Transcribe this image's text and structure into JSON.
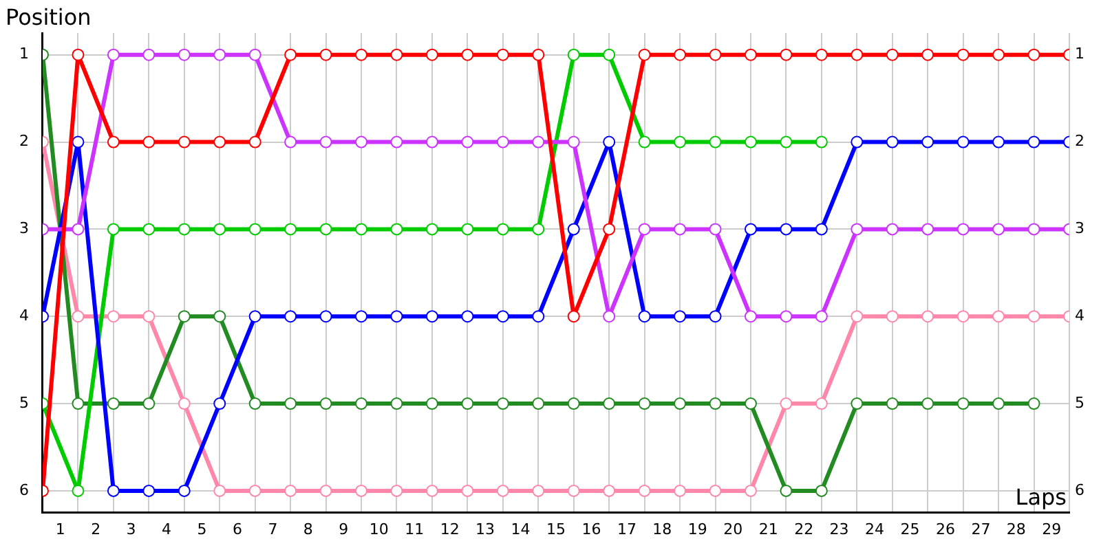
{
  "chart_data": {
    "type": "line",
    "xlabel": "Laps",
    "ylabel": "Position",
    "x": [
      0,
      1,
      2,
      3,
      4,
      5,
      6,
      7,
      8,
      9,
      10,
      11,
      12,
      13,
      14,
      15,
      16,
      17,
      18,
      19,
      20,
      21,
      22,
      23,
      24,
      25,
      26,
      27,
      28,
      29
    ],
    "xlim": [
      0,
      29
    ],
    "xticks": [
      {
        "value": 0,
        "label": null
      },
      {
        "value": 0.5,
        "label": "1"
      },
      {
        "value": 1,
        "label": null
      },
      {
        "value": 1.5,
        "label": "2"
      },
      {
        "value": 2,
        "label": null
      },
      {
        "value": 2.5,
        "label": "3"
      },
      {
        "value": 3,
        "label": null
      },
      {
        "value": 3.5,
        "label": "4"
      },
      {
        "value": 4,
        "label": null
      },
      {
        "value": 4.5,
        "label": "5"
      },
      {
        "value": 5,
        "label": null
      },
      {
        "value": 5.5,
        "label": "6"
      },
      {
        "value": 6,
        "label": null
      },
      {
        "value": 6.5,
        "label": "7"
      },
      {
        "value": 7,
        "label": null
      },
      {
        "value": 7.5,
        "label": "8"
      },
      {
        "value": 8,
        "label": null
      },
      {
        "value": 8.5,
        "label": "9"
      },
      {
        "value": 9,
        "label": null
      },
      {
        "value": 9.5,
        "label": "10"
      },
      {
        "value": 10,
        "label": null
      },
      {
        "value": 10.5,
        "label": "11"
      },
      {
        "value": 11,
        "label": null
      },
      {
        "value": 11.5,
        "label": "12"
      },
      {
        "value": 12,
        "label": null
      },
      {
        "value": 12.5,
        "label": "13"
      },
      {
        "value": 13,
        "label": null
      },
      {
        "value": 13.5,
        "label": "14"
      },
      {
        "value": 14,
        "label": null
      },
      {
        "value": 14.5,
        "label": "15"
      },
      {
        "value": 15,
        "label": null
      },
      {
        "value": 15.5,
        "label": "16"
      },
      {
        "value": 16,
        "label": null
      },
      {
        "value": 16.5,
        "label": "17"
      },
      {
        "value": 17,
        "label": null
      },
      {
        "value": 17.5,
        "label": "18"
      },
      {
        "value": 18,
        "label": null
      },
      {
        "value": 18.5,
        "label": "19"
      },
      {
        "value": 19,
        "label": null
      },
      {
        "value": 19.5,
        "label": "20"
      },
      {
        "value": 20,
        "label": null
      },
      {
        "value": 20.5,
        "label": "21"
      },
      {
        "value": 21,
        "label": null
      },
      {
        "value": 21.5,
        "label": "22"
      },
      {
        "value": 22,
        "label": null
      },
      {
        "value": 22.5,
        "label": "23"
      },
      {
        "value": 23,
        "label": null
      },
      {
        "value": 23.5,
        "label": "24"
      },
      {
        "value": 24,
        "label": null
      },
      {
        "value": 24.5,
        "label": "25"
      },
      {
        "value": 25,
        "label": null
      },
      {
        "value": 25.5,
        "label": "26"
      },
      {
        "value": 26,
        "label": null
      },
      {
        "value": 26.5,
        "label": "27"
      },
      {
        "value": 27,
        "label": null
      },
      {
        "value": 27.5,
        "label": "28"
      },
      {
        "value": 28,
        "label": null
      },
      {
        "value": 28.5,
        "label": "29"
      },
      {
        "value": 29,
        "label": null
      }
    ],
    "ylim": [
      6.25,
      0.75
    ],
    "yticks": [
      1,
      2,
      3,
      4,
      5,
      6
    ],
    "y2lim": [
      6.25,
      0.75
    ],
    "y2ticks": [
      1,
      2,
      3,
      4,
      5,
      6
    ],
    "grid": true,
    "legend": false,
    "marker": "circle",
    "line_style": "solid",
    "series": [
      {
        "color": "#ff0000",
        "values": [
          6,
          1,
          2,
          2,
          2,
          2,
          2,
          1,
          1,
          1,
          1,
          1,
          1,
          1,
          1,
          4,
          3,
          1,
          1,
          1,
          1,
          1,
          1,
          1,
          1,
          1,
          1,
          1,
          1,
          1
        ]
      },
      {
        "color": "#cc33ff",
        "values": [
          3,
          3,
          1,
          1,
          1,
          1,
          1,
          2,
          2,
          2,
          2,
          2,
          2,
          2,
          2,
          2,
          4,
          3,
          3,
          3,
          4,
          4,
          4,
          3,
          3,
          3,
          3,
          3,
          3,
          3
        ]
      },
      {
        "color": "#0000ff",
        "values": [
          4,
          2,
          6,
          6,
          6,
          5,
          4,
          4,
          4,
          4,
          4,
          4,
          4,
          4,
          4,
          3,
          2,
          4,
          4,
          4,
          3,
          3,
          3,
          2,
          2,
          2,
          2,
          2,
          2,
          2
        ]
      },
      {
        "color": "#00cc00",
        "values": [
          5,
          6,
          3,
          3,
          3,
          3,
          3,
          3,
          3,
          3,
          3,
          3,
          3,
          3,
          3,
          1,
          1,
          2,
          2,
          2,
          2,
          2,
          2,
          null,
          null,
          null,
          null,
          null,
          null,
          null
        ]
      },
      {
        "color": "#228b22",
        "values": [
          1,
          5,
          5,
          5,
          4,
          4,
          5,
          5,
          5,
          5,
          5,
          5,
          5,
          5,
          5,
          5,
          5,
          5,
          5,
          5,
          5,
          6,
          6,
          5,
          5,
          5,
          5,
          5,
          5,
          null
        ]
      },
      {
        "color": "#ff88aa",
        "values": [
          2,
          4,
          4,
          4,
          5,
          6,
          6,
          6,
          6,
          6,
          6,
          6,
          6,
          6,
          6,
          6,
          6,
          6,
          6,
          6,
          6,
          5,
          5,
          4,
          4,
          4,
          4,
          4,
          4,
          4
        ]
      }
    ]
  }
}
